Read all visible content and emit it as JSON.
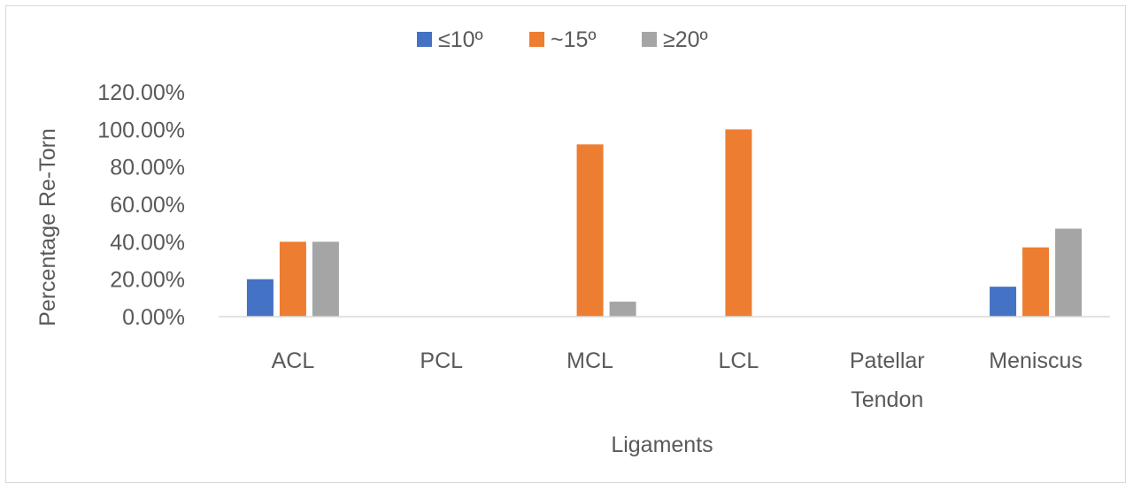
{
  "chart_data": {
    "type": "bar",
    "title": "",
    "xlabel": "Ligaments",
    "ylabel": "Percentage Re-Torn",
    "categories": [
      [
        "ACL"
      ],
      [
        "PCL"
      ],
      [
        "MCL"
      ],
      [
        "LCL"
      ],
      [
        "Patellar",
        "Tendon"
      ],
      [
        "Meniscus"
      ]
    ],
    "series": [
      {
        "name": "≤10º",
        "color": "#4472c4",
        "values": [
          20,
          0,
          0,
          0,
          0,
          16
        ]
      },
      {
        "name": "~15º",
        "color": "#ed7d31",
        "values": [
          40,
          0,
          92,
          100,
          0,
          37
        ]
      },
      {
        "name": "≥20º",
        "color": "#a5a5a5",
        "values": [
          40,
          0,
          8,
          0,
          0,
          47
        ]
      }
    ],
    "yticks": [
      "0.00%",
      "20.00%",
      "40.00%",
      "60.00%",
      "80.00%",
      "100.00%",
      "120.00%"
    ],
    "ylim": [
      0,
      120
    ],
    "legend_position": "top",
    "grid": false
  }
}
